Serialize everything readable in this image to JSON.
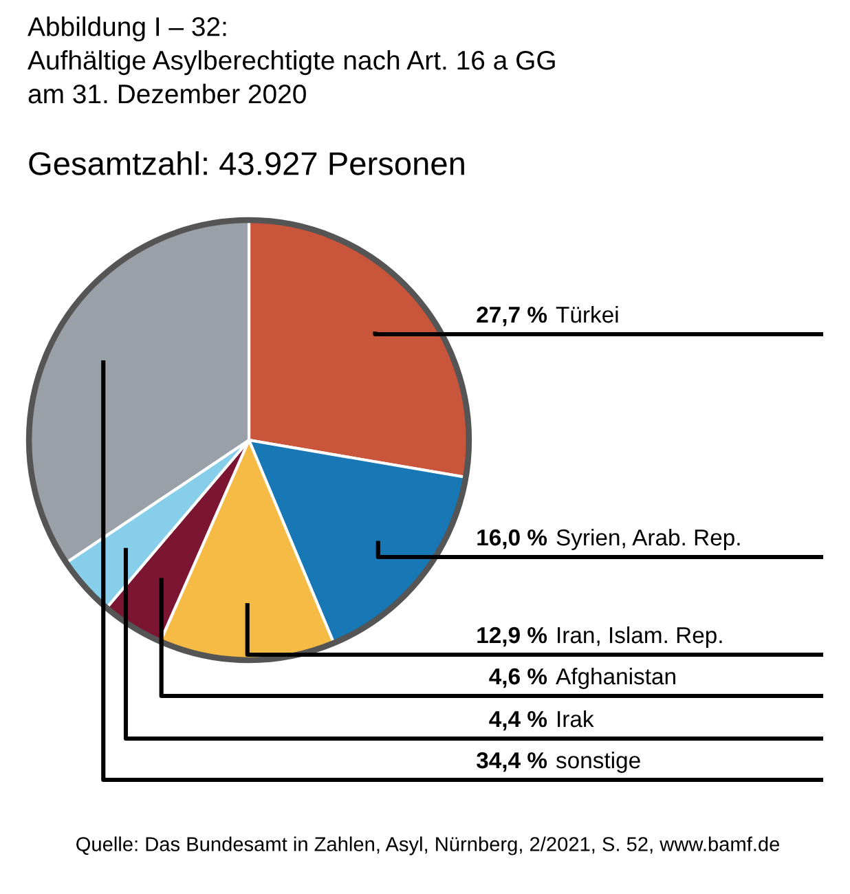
{
  "chart_data": {
    "type": "pie",
    "title": "Abbildung I – 32:\nAufhältige Asylberechtigte nach Art. 16 a GG\nam 31. Dezember 2020",
    "subtitle": "Gesamtzahl: 43.927 Personen",
    "categories": [
      "Türkei",
      "Syrien, Arab. Rep.",
      "Iran, Islam. Rep.",
      "Afghanistan",
      "Irak",
      "sonstige"
    ],
    "values": [
      27.7,
      16.0,
      12.9,
      4.6,
      4.4,
      34.4
    ],
    "value_labels": [
      "27,7 %",
      "16,0 %",
      "12,9 %",
      "4,6 %",
      "4,4 %",
      "34,4 %"
    ],
    "colors": [
      "#c9553a",
      "#1877b5",
      "#f5bb44",
      "#7b1532",
      "#87ceeb",
      "#9aa0a7"
    ],
    "annotations": [
      "Quelle: Das Bundesamt in Zahlen, Asyl, Nürnberg, 2/2021, S. 52, www.bamf.de"
    ],
    "legend": false
  }
}
